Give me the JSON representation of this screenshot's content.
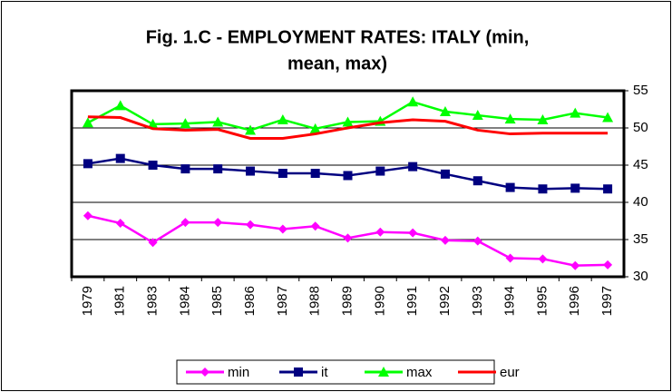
{
  "chart_data": {
    "type": "line",
    "title": [
      "Fig. 1.C - EMPLOYMENT RATES: ITALY (min,",
      "mean, max)"
    ],
    "categories": [
      "1979",
      "1981",
      "1983",
      "1984",
      "1985",
      "1986",
      "1987",
      "1988",
      "1989",
      "1990",
      "1991",
      "1992",
      "1993",
      "1994",
      "1995",
      "1996",
      "1997"
    ],
    "series": [
      {
        "name": "min",
        "color": "#ff00ff",
        "marker": "diamond",
        "values": [
          38.2,
          37.2,
          34.6,
          37.3,
          37.3,
          37.0,
          36.4,
          36.8,
          35.2,
          36.0,
          35.9,
          34.9,
          34.8,
          32.5,
          32.4,
          31.5,
          31.6
        ]
      },
      {
        "name": "it",
        "color": "#000080",
        "marker": "square",
        "values": [
          45.2,
          45.9,
          45.0,
          44.5,
          44.5,
          44.2,
          43.9,
          43.9,
          43.6,
          44.2,
          44.8,
          43.8,
          42.9,
          42.0,
          41.8,
          41.9,
          41.8
        ]
      },
      {
        "name": "max",
        "color": "#00ff00",
        "marker": "triangle",
        "values": [
          50.7,
          53.0,
          50.5,
          50.6,
          50.8,
          49.7,
          51.1,
          49.9,
          50.8,
          50.9,
          53.5,
          52.2,
          51.7,
          51.2,
          51.1,
          52.0,
          51.4
        ]
      },
      {
        "name": "eur",
        "color": "#ff0000",
        "marker": "none",
        "values": [
          51.5,
          51.4,
          49.9,
          49.7,
          49.8,
          48.6,
          48.6,
          49.2,
          50.0,
          50.7,
          51.1,
          50.9,
          49.7,
          49.2,
          49.3,
          49.3,
          49.3
        ]
      }
    ],
    "ylim": [
      30,
      55
    ],
    "yticks": [
      30,
      35,
      40,
      45,
      50,
      55
    ],
    "grid": true,
    "legend": "bottom"
  }
}
